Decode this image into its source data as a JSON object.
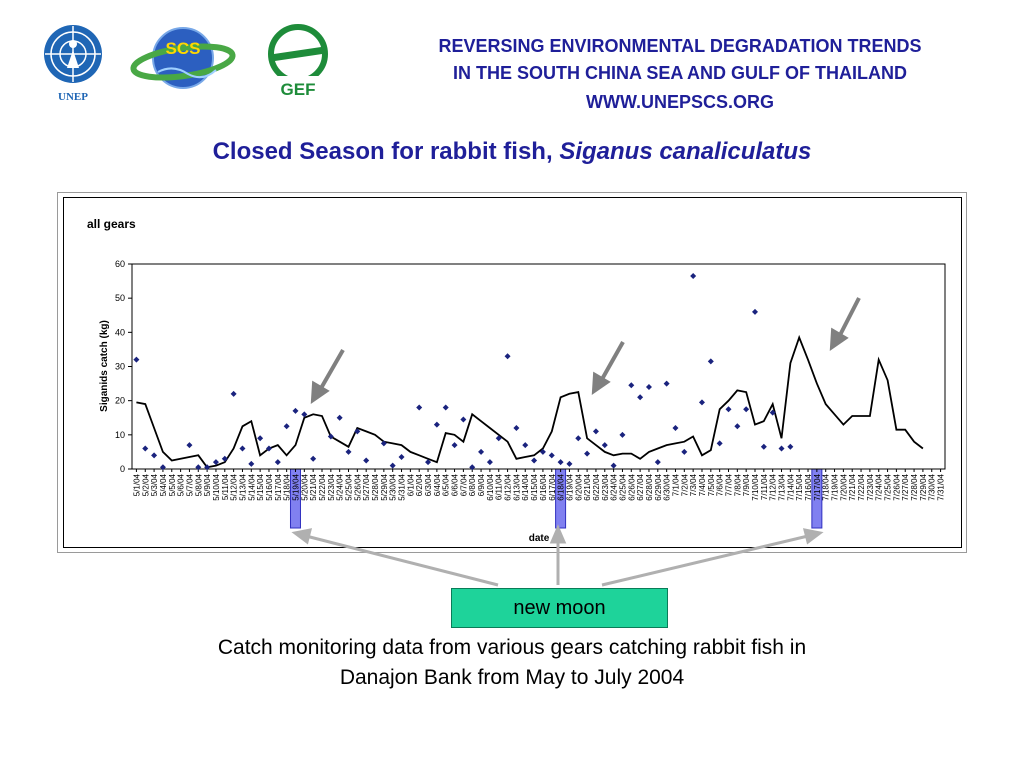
{
  "header": {
    "line1": "REVERSING ENVIRONMENTAL DEGRADATION TRENDS",
    "line2": "IN THE SOUTH CHINA SEA AND GULF OF THAILAND",
    "line3": "WWW.UNEPSCS.ORG"
  },
  "logos": {
    "unep": "UNEP",
    "scs": "SCS",
    "gef": "GEF"
  },
  "slide_title": {
    "main": "Closed Season for rabbit fish, ",
    "species": "Siganus canaliculatus"
  },
  "callout": {
    "label": "new moon"
  },
  "caption": {
    "line1": "Catch monitoring data from various gears catching rabbit fish in",
    "line2": "Danajon Bank from May to July 2004"
  },
  "colors": {
    "title": "#1f1f99",
    "marker": "#1a237e",
    "highlight": "#8080f0",
    "callout": "#1ed39a",
    "arrow": "#808080",
    "guide": "#b0b0b0"
  },
  "chart_data": {
    "type": "line",
    "title": "all gears",
    "xlabel": "date",
    "ylabel": "Siganids catch (kg)",
    "ylim": [
      0,
      60
    ],
    "yticks": [
      0,
      10,
      20,
      30,
      40,
      50,
      60
    ],
    "grid": false,
    "categories": [
      "5/1/04",
      "5/2/04",
      "5/3/04",
      "5/4/04",
      "5/5/04",
      "5/6/04",
      "5/7/04",
      "5/8/04",
      "5/9/04",
      "5/10/04",
      "5/11/04",
      "5/12/04",
      "5/13/04",
      "5/14/04",
      "5/15/04",
      "5/16/04",
      "5/17/04",
      "5/18/04",
      "5/19/04",
      "5/20/04",
      "5/21/04",
      "5/22/04",
      "5/23/04",
      "5/24/04",
      "5/25/04",
      "5/26/04",
      "5/27/04",
      "5/28/04",
      "5/29/04",
      "5/30/04",
      "5/31/04",
      "6/1/04",
      "6/2/04",
      "6/3/04",
      "6/4/04",
      "6/5/04",
      "6/6/04",
      "6/7/04",
      "6/8/04",
      "6/9/04",
      "6/10/04",
      "6/11/04",
      "6/12/04",
      "6/13/04",
      "6/14/04",
      "6/15/04",
      "6/16/04",
      "6/17/04",
      "6/18/04",
      "6/19/04",
      "6/20/04",
      "6/21/04",
      "6/22/04",
      "6/23/04",
      "6/24/04",
      "6/25/04",
      "6/26/04",
      "6/27/04",
      "6/28/04",
      "6/29/04",
      "6/30/04",
      "7/1/04",
      "7/2/04",
      "7/3/04",
      "7/4/04",
      "7/5/04",
      "7/6/04",
      "7/7/04",
      "7/8/04",
      "7/9/04",
      "7/10/04",
      "7/11/04",
      "7/12/04",
      "7/13/04",
      "7/14/04",
      "7/15/04",
      "7/16/04",
      "7/17/04",
      "7/18/04",
      "7/19/04",
      "7/20/04",
      "7/21/04",
      "7/22/04",
      "7/23/04",
      "7/24/04",
      "7/25/04",
      "7/26/04",
      "7/27/04",
      "7/28/04",
      "7/29/04",
      "7/30/04",
      "7/31/04"
    ],
    "series": [
      {
        "kind": "points",
        "values": [
          32,
          6,
          4,
          0.5,
          null,
          null,
          7,
          0.5,
          0.5,
          2,
          3,
          22,
          6,
          1.5,
          9,
          6,
          2,
          12.5,
          17,
          16,
          3,
          null,
          9.5,
          15,
          5,
          11,
          2.5,
          null,
          7.5,
          1,
          3.5,
          null,
          18,
          2,
          13,
          18,
          7,
          14.5,
          0.5,
          5,
          2,
          9,
          33,
          12,
          7,
          2.5,
          5,
          4,
          2,
          1.5,
          9,
          4.5,
          11,
          7,
          1,
          10,
          24.5,
          21,
          24,
          2,
          25,
          12,
          5,
          56.5,
          19.5,
          31.5,
          7.5,
          17.5,
          12.5,
          17.5,
          46,
          6.5,
          16.5,
          6,
          6.5,
          null,
          null,
          null,
          null,
          null,
          null,
          null,
          null,
          null,
          null,
          null,
          null,
          null,
          null,
          null,
          null,
          null
        ]
      },
      {
        "kind": "moving-average",
        "values": [
          19.5,
          19,
          12,
          5,
          2.5,
          3,
          3.5,
          4,
          0.5,
          1,
          2,
          6,
          12.5,
          14,
          4,
          6,
          7,
          4,
          7,
          15,
          16,
          15.5,
          9.5,
          8,
          6.5,
          12,
          11,
          10,
          8,
          7.5,
          7,
          5,
          4,
          3,
          2,
          10.5,
          10,
          8,
          16,
          14,
          12,
          10,
          8,
          3,
          3.5,
          4,
          6,
          11,
          21,
          22,
          22.5,
          9,
          7,
          5,
          4,
          4.5,
          4.5,
          3,
          5,
          6,
          7,
          7.5,
          8,
          9.5,
          4,
          5.5,
          17.5,
          20,
          23,
          22.5,
          13,
          14,
          19,
          9,
          31,
          38.5,
          32,
          25,
          19,
          16,
          13,
          15.5,
          15.5,
          15.5,
          32,
          26,
          11.5,
          11.5,
          8,
          6,
          null,
          null
        ]
      }
    ],
    "highlighted_dates": [
      "5/19/04",
      "6/18/04",
      "7/17/04"
    ]
  }
}
